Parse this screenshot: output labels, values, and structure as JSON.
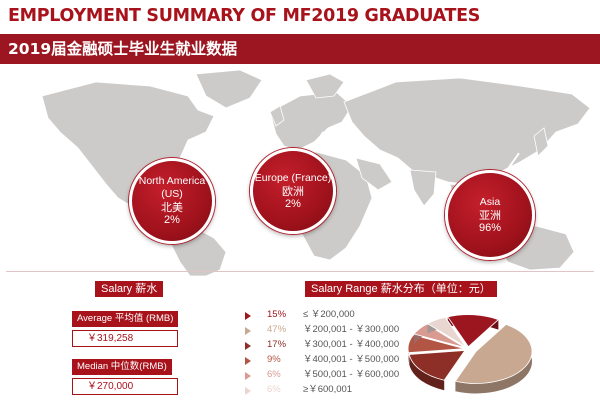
{
  "header": {
    "title": "EMPLOYMENT SUMMARY OF MF2019 GRADUATES",
    "subtitle": "2019届金融硕士毕业生就业数据"
  },
  "regions": [
    {
      "name": "North America (US)",
      "name_cn": "北美",
      "percent": "2%"
    },
    {
      "name": "Europe (France)",
      "name_cn": "欧洲",
      "percent": "2%"
    },
    {
      "name": "Asia",
      "name_cn": "亚洲",
      "percent": "96%"
    }
  ],
  "salary": {
    "section_label": "Salary 薪水",
    "average_label": "Average 平均值 (RMB)",
    "average_value": "￥319,258",
    "median_label": "Median 中位数(RMB)",
    "median_value": "￥270,000"
  },
  "colors": {
    "brand_red": "#a8121b",
    "map_gray": "#cdcbc9",
    "pie_slices": [
      "#9c1620",
      "#c9a891",
      "#8e2f27",
      "#b35544",
      "#d99a91",
      "#ead6d1"
    ]
  },
  "chart_data": {
    "type": "pie",
    "title": "Salary Range 薪水分布（单位：元）",
    "categories": [
      "≤ ￥200,000",
      "￥200,001 - ￥300,000",
      "￥300,001 - ￥400,000",
      "￥400,001 - ￥500,000",
      "￥500,001 - ￥600,000",
      "≥￥600,001"
    ],
    "labels": [
      "15%",
      "47%",
      "17%",
      "9%",
      "6%",
      "6%"
    ],
    "values": [
      15,
      47,
      17,
      9,
      6,
      6
    ],
    "style": "3d-exploded"
  }
}
